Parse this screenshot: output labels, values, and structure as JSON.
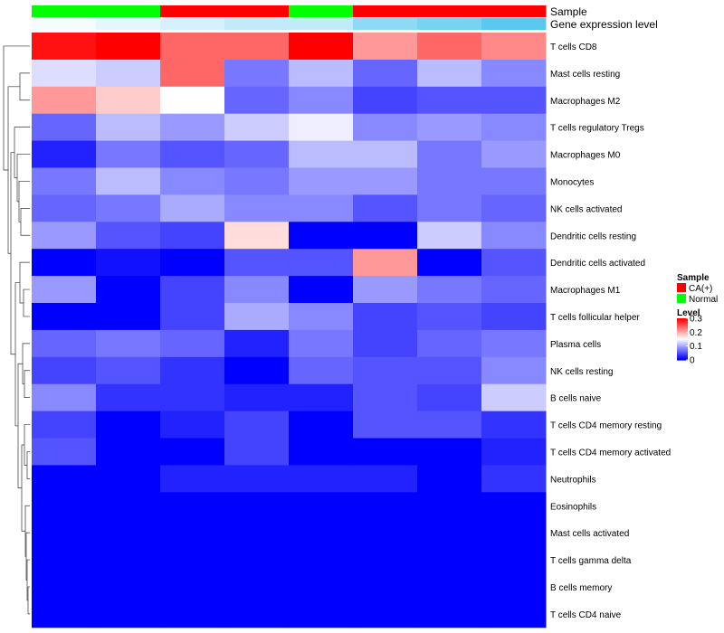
{
  "chart_data": {
    "type": "heatmap",
    "title": "",
    "annotations": [
      {
        "name": "Sample",
        "values": [
          "Normal",
          "Normal",
          "CA(+)",
          "CA(+)",
          "Normal",
          "CA(+)",
          "CA(+)",
          "CA(+)"
        ]
      },
      {
        "name": "Gene expression level",
        "values": [
          0.02,
          0.05,
          0.08,
          0.12,
          0.12,
          0.22,
          0.26,
          0.32
        ]
      }
    ],
    "rows": [
      "T cells CD8",
      "Mast cells resting",
      "Macrophages M2",
      "T cells regulatory  Tregs",
      "Macrophages M0",
      "Monocytes",
      "NK cells activated",
      "Dendritic cells resting",
      "Dendritic cells activated",
      "Macrophages M1",
      "T cells follicular helper",
      "Plasma cells",
      "NK cells resting",
      "B cells naive",
      "T cells CD4 memory resting",
      "T cells CD4 memory activated",
      "Neutrophils",
      "Eosinophils",
      "Mast cells activated",
      "T cells gamma delta",
      "B cells memory",
      "T cells CD4 naive"
    ],
    "values": [
      [
        0.29,
        0.3,
        0.24,
        0.24,
        0.3,
        0.21,
        0.24,
        0.22
      ],
      [
        0.13,
        0.12,
        0.24,
        0.07,
        0.11,
        0.06,
        0.11,
        0.08
      ],
      [
        0.21,
        0.18,
        0.15,
        0.06,
        0.08,
        0.04,
        0.05,
        0.05
      ],
      [
        0.06,
        0.11,
        0.09,
        0.12,
        0.14,
        0.08,
        0.09,
        0.08
      ],
      [
        0.02,
        0.07,
        0.05,
        0.06,
        0.11,
        0.11,
        0.07,
        0.09
      ],
      [
        0.07,
        0.11,
        0.08,
        0.07,
        0.09,
        0.09,
        0.07,
        0.07
      ],
      [
        0.06,
        0.07,
        0.1,
        0.08,
        0.08,
        0.05,
        0.07,
        0.06
      ],
      [
        0.09,
        0.05,
        0.04,
        0.17,
        0.0,
        0.0,
        0.12,
        0.08
      ],
      [
        0.0,
        0.01,
        0.0,
        0.05,
        0.05,
        0.21,
        0.0,
        0.05
      ],
      [
        0.09,
        0.0,
        0.04,
        0.08,
        0.0,
        0.09,
        0.07,
        0.06
      ],
      [
        0.0,
        0.0,
        0.04,
        0.1,
        0.08,
        0.04,
        0.05,
        0.04
      ],
      [
        0.06,
        0.07,
        0.06,
        0.02,
        0.07,
        0.04,
        0.06,
        0.07
      ],
      [
        0.04,
        0.05,
        0.03,
        0.0,
        0.06,
        0.05,
        0.05,
        0.08
      ],
      [
        0.08,
        0.03,
        0.03,
        0.02,
        0.02,
        0.05,
        0.04,
        0.12
      ],
      [
        0.04,
        0.0,
        0.02,
        0.04,
        0.0,
        0.05,
        0.05,
        0.03
      ],
      [
        0.05,
        0.0,
        0.0,
        0.04,
        0.0,
        0.0,
        0.0,
        0.02
      ],
      [
        0.0,
        0.0,
        0.02,
        0.02,
        0.02,
        0.02,
        0.0,
        0.03
      ],
      [
        0.0,
        0.0,
        0.0,
        0.0,
        0.0,
        0.0,
        0.0,
        0.0
      ],
      [
        0.0,
        0.0,
        0.0,
        0.0,
        0.0,
        0.0,
        0.0,
        0.0
      ],
      [
        0.0,
        0.0,
        0.0,
        0.0,
        0.0,
        0.0,
        0.0,
        0.0
      ],
      [
        0.0,
        0.0,
        0.0,
        0.0,
        0.0,
        0.0,
        0.0,
        0.0
      ],
      [
        0.0,
        0.0,
        0.0,
        0.0,
        0.0,
        0.0,
        0.0,
        0.0
      ]
    ],
    "color_scale": {
      "low": "#0000FF",
      "mid": "#FFFFFF",
      "high": "#FF0000",
      "min": 0,
      "mid_value": 0.15,
      "max": 0.3
    },
    "sample_colors": {
      "CA(+)": "#FF0000",
      "Normal": "#00FF00"
    },
    "expression_colors": {
      "low": "#FFFFFF",
      "high": "#5BC8EE"
    },
    "legend": {
      "position": "right",
      "sample_title": "Sample",
      "sample_entries": [
        "CA(+)",
        "Normal"
      ],
      "level_title": "Level",
      "level_ticks": [
        "0.3",
        "0.2",
        "0.1",
        "0"
      ],
      "level_tick_values": [
        0.3,
        0.2,
        0.1,
        0
      ]
    },
    "row_dendrogram": "hierarchical clustering of rows"
  }
}
